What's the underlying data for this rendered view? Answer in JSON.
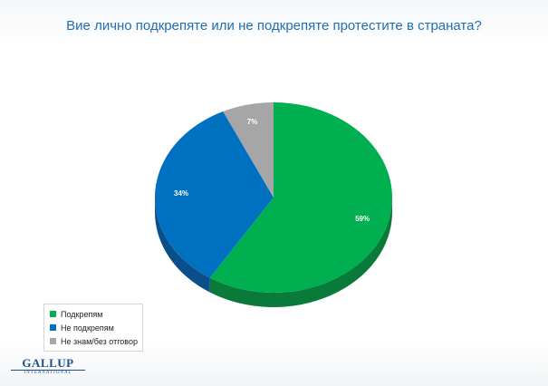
{
  "chart_data": {
    "type": "pie",
    "title": "Вие лично подкрепяте или не подкрепяте протестите в страната?",
    "slices": [
      {
        "name": "Подкрепям",
        "value": 59,
        "label": "59%",
        "color": "#00b050",
        "side_color": "#0a7a3a"
      },
      {
        "name": "Не подкрепям",
        "value": 34,
        "label": "34%",
        "color": "#0070c0",
        "side_color": "#0a4f8a"
      },
      {
        "name": "Не знам/без отговор",
        "value": 7,
        "label": "7%",
        "color": "#a6a6a6",
        "side_color": "#737373"
      }
    ],
    "legend_position": "bottom-left"
  },
  "logo": {
    "main": "GALLUP",
    "sub": "INTERNATIONAL"
  }
}
